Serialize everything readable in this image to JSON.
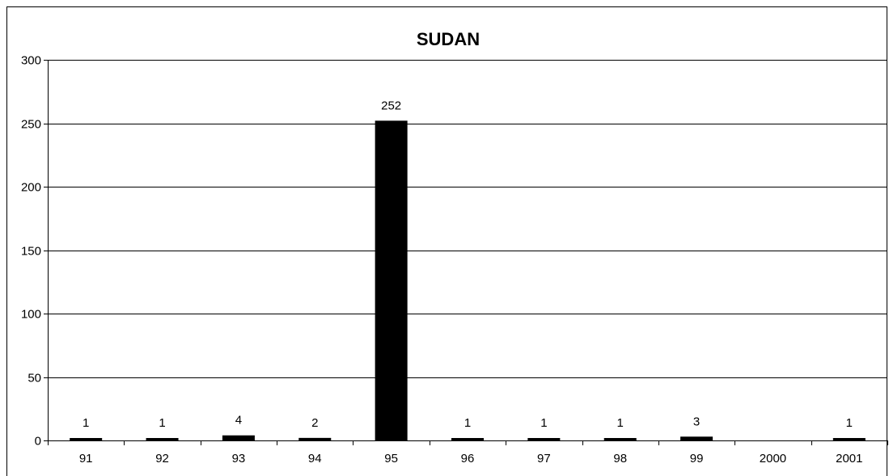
{
  "chart_data": {
    "type": "bar",
    "title": "SUDAN",
    "xlabel": "",
    "ylabel": "",
    "categories": [
      "91",
      "92",
      "93",
      "94",
      "95",
      "96",
      "97",
      "98",
      "99",
      "2000",
      "2001"
    ],
    "values": [
      1,
      1,
      4,
      2,
      252,
      1,
      1,
      1,
      3,
      0,
      1
    ],
    "data_labels": [
      "1",
      "1",
      "4",
      "2",
      "252",
      "1",
      "1",
      "1",
      "3",
      "",
      "1"
    ],
    "ylim": [
      0,
      300
    ],
    "yticks": [
      0,
      50,
      100,
      150,
      200,
      250,
      300
    ],
    "grid": true,
    "legend": "none",
    "bar_color": "#000000"
  }
}
